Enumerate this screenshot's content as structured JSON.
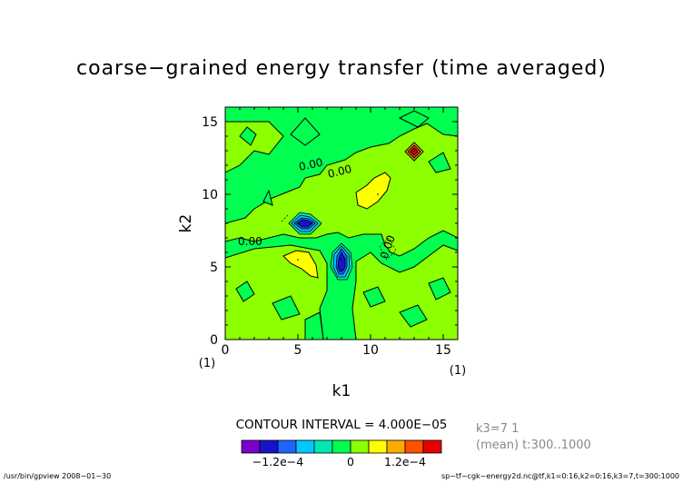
{
  "chart_data": {
    "type": "heatmap",
    "title": "coarse−grained energy transfer (time averaged)",
    "xlabel": "k1",
    "ylabel": "k2",
    "xlim": [
      0,
      16
    ],
    "ylim": [
      0,
      16
    ],
    "x_ticks": [
      "0",
      "5",
      "10",
      "15"
    ],
    "y_ticks": [
      "0",
      "5",
      "10",
      "15"
    ],
    "x_unit": "(1)",
    "y_unit": "(1)",
    "contour_interval_label": "CONTOUR INTERVAL = 4.000E−05",
    "contour_labels": [
      "0.00",
      "0.00",
      "0.00",
      "0.00"
    ],
    "colorbar": {
      "colors": [
        "#7b00c8",
        "#1414c8",
        "#1e64ff",
        "#00c8ff",
        "#00e6b4",
        "#00ff50",
        "#8cff00",
        "#ffff00",
        "#ffaa00",
        "#ff5000",
        "#e60000"
      ],
      "tick_labels": [
        "−1.2e−4",
        "0",
        "1.2e−4"
      ],
      "background": "#00ff50"
    },
    "features": [
      {
        "k1": 5,
        "k2": 8,
        "value": -0.00016
      },
      {
        "k1": 8,
        "k2": 5.5,
        "value": -0.00014
      },
      {
        "k1": 13,
        "k2": 13,
        "value": 0.00016
      },
      {
        "k1": 10.5,
        "k2": 10,
        "value": 5e-05
      },
      {
        "k1": 5,
        "k2": 5.5,
        "value": 5e-05
      }
    ]
  },
  "side_info": {
    "line1": "k3=7 1",
    "line2": "(mean) t:300..1000"
  },
  "footer": {
    "left": "/usr/bin/gpview  2008−01−30",
    "right": "sp−tf−cgk−energy2d.nc@tf,k1=0:16,k2=0:16,k3=7,t=300:1000"
  }
}
